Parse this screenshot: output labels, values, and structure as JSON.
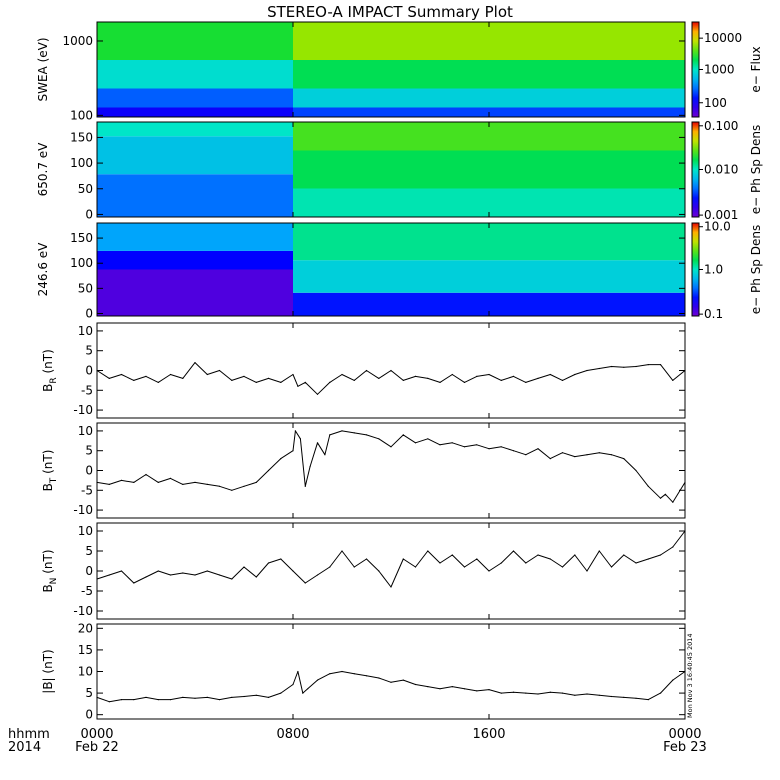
{
  "chart_data": {
    "title": "STEREO-A IMPACT Summary Plot",
    "xaxis": {
      "row_label": "hhmm",
      "year_label": "2014",
      "range_hours": [
        0,
        24
      ],
      "ticks": [
        {
          "hour": 0,
          "label": "0000",
          "date": "Feb 22"
        },
        {
          "hour": 8,
          "label": "0800",
          "date": ""
        },
        {
          "hour": 16,
          "label": "1600",
          "date": ""
        },
        {
          "hour": 24,
          "label": "0000",
          "date": "Feb 23"
        }
      ]
    },
    "stamp": "Mon Nov  3 16:40:45 2014",
    "spectrograms": [
      {
        "type": "heatmap",
        "ylabel": "SWEA (eV)",
        "cbar_label": "e− Flux",
        "yscale": "log",
        "ylim": [
          95,
          1800
        ],
        "yticks": [
          {
            "v": 100,
            "label": "100"
          },
          {
            "v": 1000,
            "label": "1000"
          }
        ],
        "cbar_ticks": [
          {
            "f": 0.15,
            "label": "100"
          },
          {
            "f": 0.5,
            "label": "1000"
          },
          {
            "f": 0.83,
            "label": "10000"
          }
        ]
      },
      {
        "type": "heatmap",
        "ylabel": "650.7 eV",
        "cbar_label": "e− Ph Sp Dens",
        "yscale": "linear",
        "ylim": [
          -5,
          180
        ],
        "yticks": [
          {
            "v": 0,
            "label": "0"
          },
          {
            "v": 50,
            "label": "50"
          },
          {
            "v": 100,
            "label": "100"
          },
          {
            "v": 150,
            "label": "150"
          }
        ],
        "cbar_ticks": [
          {
            "f": 0.02,
            "label": "0.001"
          },
          {
            "f": 0.5,
            "label": "0.010"
          },
          {
            "f": 0.96,
            "label": "0.100"
          }
        ]
      },
      {
        "type": "heatmap",
        "ylabel": "246.6 eV",
        "cbar_label": "e− Ph Sp Dens",
        "yscale": "linear",
        "ylim": [
          -5,
          180
        ],
        "yticks": [
          {
            "v": 0,
            "label": "0"
          },
          {
            "v": 50,
            "label": "50"
          },
          {
            "v": 100,
            "label": "100"
          },
          {
            "v": 150,
            "label": "150"
          }
        ],
        "cbar_ticks": [
          {
            "f": 0.02,
            "label": "0.1"
          },
          {
            "f": 0.5,
            "label": "1.0"
          },
          {
            "f": 0.96,
            "label": "10.0"
          }
        ]
      }
    ],
    "line_panels": [
      {
        "type": "line",
        "ylabel": "B",
        "ylabel_sub": "R",
        "yunit": " (nT)",
        "ylim": [
          -12,
          12
        ],
        "yticks": [
          -10,
          -5,
          0,
          5,
          10
        ],
        "x": [
          0,
          0.5,
          1,
          1.5,
          2,
          2.5,
          3,
          3.5,
          4,
          4.5,
          5,
          5.5,
          6,
          6.5,
          7,
          7.5,
          8,
          8.2,
          8.5,
          9,
          9.5,
          10,
          10.5,
          11,
          11.5,
          12,
          12.5,
          13,
          13.5,
          14,
          14.5,
          15,
          15.5,
          16,
          16.5,
          17,
          17.5,
          18,
          18.5,
          19,
          19.5,
          20,
          20.5,
          21,
          21.5,
          22,
          22.5,
          23,
          23.5,
          24
        ],
        "y": [
          0,
          -2,
          -1,
          -2.5,
          -1.5,
          -3,
          -1,
          -2,
          2,
          -1,
          0,
          -2.5,
          -1.5,
          -3,
          -2,
          -3,
          -1,
          -4,
          -3,
          -6,
          -3,
          -1,
          -2.5,
          0,
          -2,
          0,
          -2.5,
          -1.5,
          -2,
          -3,
          -1,
          -3,
          -1.5,
          -1,
          -2.5,
          -1.5,
          -3,
          -2,
          -1,
          -2.5,
          -1,
          0,
          0.5,
          1,
          0.8,
          1,
          1.5,
          1.5,
          -2.5,
          0
        ]
      },
      {
        "type": "line",
        "ylabel": "B",
        "ylabel_sub": "T",
        "yunit": " (nT)",
        "ylim": [
          -12,
          12
        ],
        "yticks": [
          -10,
          -5,
          0,
          5,
          10
        ],
        "x": [
          0,
          0.5,
          1,
          1.5,
          2,
          2.5,
          3,
          3.5,
          4,
          4.5,
          5,
          5.5,
          6,
          6.5,
          7,
          7.5,
          8,
          8.1,
          8.3,
          8.5,
          8.7,
          9,
          9.3,
          9.5,
          10,
          10.5,
          11,
          11.5,
          12,
          12.5,
          13,
          13.5,
          14,
          14.5,
          15,
          15.5,
          16,
          16.5,
          17,
          17.5,
          18,
          18.5,
          19,
          19.5,
          20,
          20.5,
          21,
          21.5,
          22,
          22.5,
          23,
          23.2,
          23.5,
          24
        ],
        "y": [
          -3,
          -3.5,
          -2.5,
          -3,
          -1,
          -3,
          -2,
          -3.5,
          -3,
          -3.5,
          -4,
          -5,
          -4,
          -3,
          0,
          3,
          5,
          10,
          8,
          -4,
          1,
          7,
          4,
          9,
          10,
          9.5,
          9,
          8,
          6,
          9,
          7,
          8,
          6.5,
          7,
          6,
          6.5,
          5.5,
          6,
          5,
          4,
          5.5,
          3,
          4.5,
          3.5,
          4,
          4.5,
          4,
          3,
          0,
          -4,
          -7,
          -6,
          -8,
          -3
        ]
      },
      {
        "type": "line",
        "ylabel": "B",
        "ylabel_sub": "N",
        "yunit": " (nT)",
        "ylim": [
          -12,
          12
        ],
        "yticks": [
          -10,
          -5,
          0,
          5,
          10
        ],
        "x": [
          0,
          0.5,
          1,
          1.5,
          2,
          2.5,
          3,
          3.5,
          4,
          4.5,
          5,
          5.5,
          6,
          6.5,
          7,
          7.5,
          8,
          8.5,
          9,
          9.5,
          10,
          10.5,
          11,
          11.5,
          12,
          12.5,
          13,
          13.5,
          14,
          14.5,
          15,
          15.5,
          16,
          16.5,
          17,
          17.5,
          18,
          18.5,
          19,
          19.5,
          20,
          20.5,
          21,
          21.5,
          22,
          22.5,
          23,
          23.5,
          24
        ],
        "y": [
          -2,
          -1,
          0,
          -3,
          -1.5,
          0,
          -1,
          -0.5,
          -1,
          0,
          -1,
          -2,
          1,
          -1.5,
          2,
          3,
          0,
          -3,
          -1,
          1,
          5,
          1,
          3,
          0,
          -4,
          3,
          1,
          5,
          2,
          4,
          1,
          3,
          0,
          2,
          5,
          2,
          4,
          3,
          1,
          4,
          0,
          5,
          1,
          4,
          2,
          3,
          4,
          6,
          10
        ]
      },
      {
        "type": "line",
        "ylabel": "|B|",
        "ylabel_sub": "",
        "yunit": " (nT)",
        "ylim": [
          -1,
          21
        ],
        "yticks": [
          0,
          5,
          10,
          15,
          20
        ],
        "x": [
          0,
          0.5,
          1,
          1.5,
          2,
          2.5,
          3,
          3.5,
          4,
          4.5,
          5,
          5.5,
          6,
          6.5,
          7,
          7.5,
          8,
          8.2,
          8.4,
          8.6,
          9,
          9.5,
          10,
          10.5,
          11,
          11.5,
          12,
          12.5,
          13,
          13.5,
          14,
          14.5,
          15,
          15.5,
          16,
          16.5,
          17,
          17.5,
          18,
          18.5,
          19,
          19.5,
          20,
          20.5,
          21,
          21.5,
          22,
          22.5,
          23,
          23.5,
          24
        ],
        "y": [
          4,
          3,
          3.5,
          3.5,
          4,
          3.5,
          3.5,
          4,
          3.8,
          4,
          3.5,
          4,
          4.2,
          4.5,
          4,
          5,
          7,
          10,
          5,
          6,
          8,
          9.5,
          10,
          9.5,
          9,
          8.5,
          7.5,
          8,
          7,
          6.5,
          6,
          6.5,
          6,
          5.5,
          5.8,
          5,
          5.2,
          5,
          4.8,
          5.2,
          5,
          4.5,
          4.8,
          4.5,
          4.2,
          4,
          3.8,
          3.5,
          5,
          8,
          10
        ]
      }
    ]
  }
}
